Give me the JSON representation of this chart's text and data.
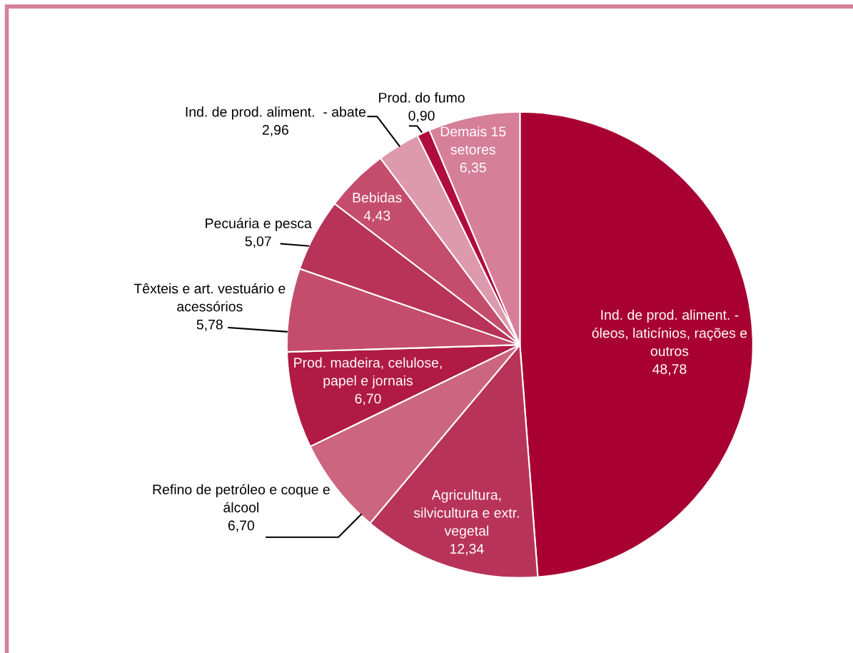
{
  "chart_data": {
    "type": "pie",
    "categories": [
      "Ind. de prod. aliment. -\nóleos, laticínios, rações e\noutros",
      "Agricultura,\nsilvicultura e extr.\nvegetal",
      "Refino de petróleo e coque e\nálcool",
      "Prod. madeira, celulose,\npapel e jornais",
      "Têxteis e art. vestuário e\nacessórios",
      "Pecuária e pesca",
      "Bebidas",
      "Ind. de prod. aliment.  - abate",
      "Prod. do fumo",
      "Demais 15\nsetores"
    ],
    "values": [
      48.78,
      12.34,
      6.7,
      6.7,
      5.78,
      5.07,
      4.43,
      2.96,
      0.9,
      6.35
    ],
    "value_labels": [
      "48,78",
      "12,34",
      "6,70",
      "6,70",
      "5,78",
      "5,07",
      "4,43",
      "2,96",
      "0,90",
      "6,35"
    ],
    "colors": [
      "#a80032",
      "#b8335a",
      "#cc6680",
      "#b01a45",
      "#c44d6e",
      "#b83359",
      "#c44d6e",
      "#dd99ad",
      "#b00d3e",
      "#d67f98"
    ]
  }
}
